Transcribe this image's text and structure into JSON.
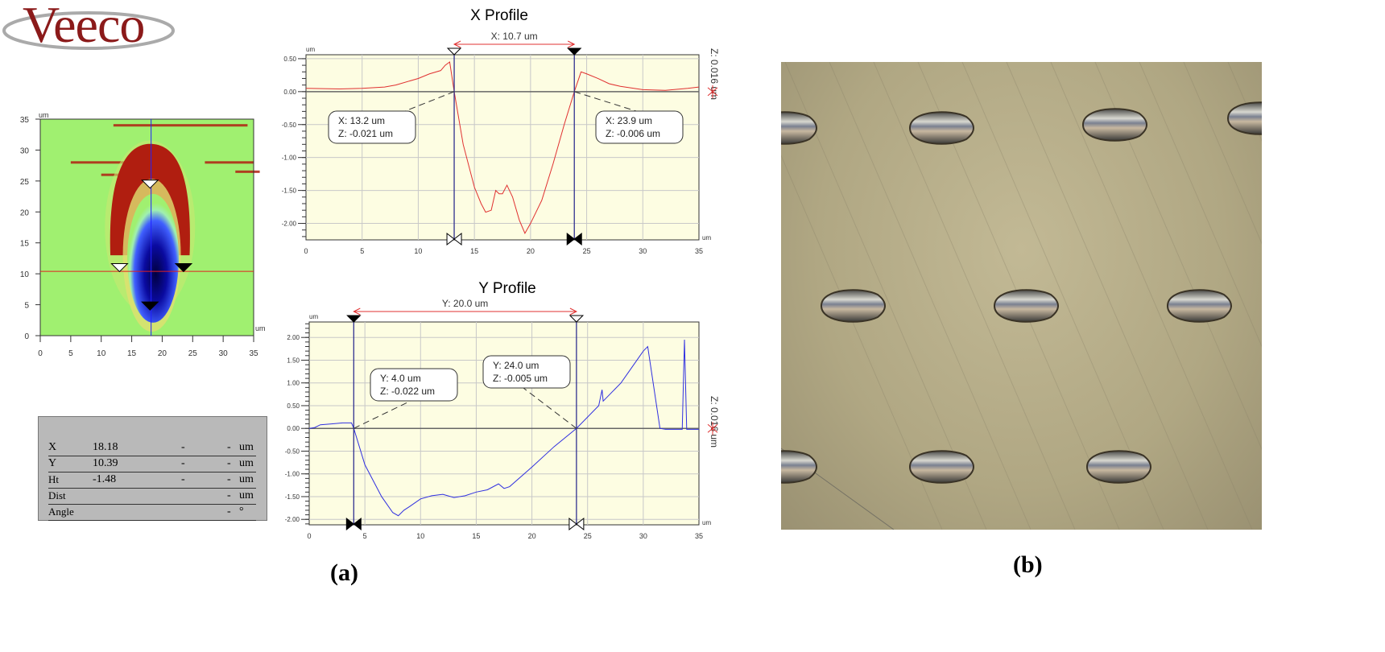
{
  "logo": {
    "text": "Veeco"
  },
  "figure_labels": {
    "a": "(a)",
    "b": "(b)"
  },
  "heatmap": {
    "y_unit": "um",
    "x_unit": "um",
    "x_ticks": [
      "0",
      "5",
      "10",
      "15",
      "20",
      "25",
      "30",
      "35"
    ],
    "y_ticks": [
      "0",
      "5",
      "10",
      "15",
      "20",
      "25",
      "30",
      "35"
    ],
    "cursor_x": 18.18,
    "cursor_y": 10.39,
    "colors": {
      "background": "#a0f070",
      "rim": "#b01e10",
      "pit": "#10108c"
    }
  },
  "readout_table": {
    "rows": [
      {
        "label": "X",
        "value": "18.18",
        "c1": "-",
        "c2": "-",
        "unit": "um"
      },
      {
        "label": "Y",
        "value": "10.39",
        "c1": "-",
        "c2": "-",
        "unit": "um"
      },
      {
        "label": "Ht",
        "value": "-1.48",
        "c1": "-",
        "c2": "-",
        "unit": "um"
      },
      {
        "label": "Dist",
        "value": "",
        "c1": "",
        "c2": "-",
        "unit": "um"
      },
      {
        "label": "Angle",
        "value": "",
        "c1": "",
        "c2": "-",
        "unit": "°"
      }
    ]
  },
  "chart_data": [
    {
      "type": "line",
      "title": "X Profile",
      "ylabel": "um",
      "xlabel": "um",
      "xlim": [
        0,
        35
      ],
      "ylim": [
        -2.25,
        0.56
      ],
      "x_ticks": [
        "0",
        "5",
        "10",
        "15",
        "20",
        "25",
        "30",
        "35"
      ],
      "y_ticks": [
        "0.50",
        "0.00",
        "-0.50",
        "-1.00",
        "-1.50",
        "-2.00"
      ],
      "grid": true,
      "color": "#e03030",
      "measure_label": "X: 10.7 um",
      "z_scale_label": "Z: 0.016 um",
      "cursors": [
        {
          "x": 13.2,
          "z": -0.021,
          "line1": "X: 13.2 um",
          "line2": "Z: -0.021 um",
          "marker": "open"
        },
        {
          "x": 23.9,
          "z": -0.006,
          "line1": "X: 23.9 um",
          "line2": "Z: -0.006 um",
          "marker": "filled"
        }
      ],
      "points": [
        [
          0,
          0.05
        ],
        [
          3,
          0.04
        ],
        [
          5,
          0.05
        ],
        [
          7,
          0.07
        ],
        [
          8,
          0.1
        ],
        [
          10,
          0.2
        ],
        [
          11,
          0.27
        ],
        [
          12,
          0.32
        ],
        [
          12.4,
          0.4
        ],
        [
          12.8,
          0.45
        ],
        [
          13.2,
          0
        ],
        [
          14,
          -0.8
        ],
        [
          15,
          -1.45
        ],
        [
          15.6,
          -1.7
        ],
        [
          16,
          -1.83
        ],
        [
          16.5,
          -1.8
        ],
        [
          16.9,
          -1.5
        ],
        [
          17.2,
          -1.55
        ],
        [
          17.5,
          -1.55
        ],
        [
          17.9,
          -1.42
        ],
        [
          18.4,
          -1.6
        ],
        [
          19,
          -1.95
        ],
        [
          19.5,
          -2.15
        ],
        [
          20,
          -2.0
        ],
        [
          21,
          -1.65
        ],
        [
          22,
          -1.1
        ],
        [
          23,
          -0.5
        ],
        [
          23.9,
          0
        ],
        [
          24.5,
          0.3
        ],
        [
          25,
          0.27
        ],
        [
          26,
          0.2
        ],
        [
          27,
          0.12
        ],
        [
          28,
          0.08
        ],
        [
          30,
          0.03
        ],
        [
          32,
          0.02
        ],
        [
          34,
          0.05
        ],
        [
          35,
          0.07
        ]
      ]
    },
    {
      "type": "line",
      "title": "Y Profile",
      "ylabel": "um",
      "xlabel": "um",
      "xlim": [
        0,
        35
      ],
      "ylim": [
        -2.12,
        2.34
      ],
      "x_ticks": [
        "0",
        "5",
        "10",
        "15",
        "20",
        "25",
        "30",
        "35"
      ],
      "y_ticks": [
        "2.00",
        "1.50",
        "1.00",
        "0.50",
        "0.00",
        "-0.50",
        "-1.00",
        "-1.50",
        "-2.00"
      ],
      "grid": true,
      "color": "#3030e0",
      "measure_label": "Y: 20.0 um",
      "z_scale_label": "Z: 0.016 um",
      "cursors": [
        {
          "x": 4.0,
          "z": -0.022,
          "line1": "Y: 4.0 um",
          "line2": "Z: -0.022 um",
          "marker": "filled"
        },
        {
          "x": 24.0,
          "z": -0.005,
          "line1": "Y: 24.0 um",
          "line2": "Z: -0.005 um",
          "marker": "open"
        }
      ],
      "points": [
        [
          0,
          0
        ],
        [
          0.5,
          0.02
        ],
        [
          1,
          0.08
        ],
        [
          2,
          0.1
        ],
        [
          3,
          0.12
        ],
        [
          3.8,
          0.12
        ],
        [
          4,
          0
        ],
        [
          5,
          -0.8
        ],
        [
          6.5,
          -1.5
        ],
        [
          7.5,
          -1.85
        ],
        [
          8,
          -1.92
        ],
        [
          8.5,
          -1.8
        ],
        [
          9,
          -1.72
        ],
        [
          10,
          -1.55
        ],
        [
          11,
          -1.48
        ],
        [
          12,
          -1.45
        ],
        [
          13,
          -1.52
        ],
        [
          14,
          -1.48
        ],
        [
          15,
          -1.4
        ],
        [
          16,
          -1.35
        ],
        [
          17,
          -1.22
        ],
        [
          17.5,
          -1.32
        ],
        [
          18,
          -1.28
        ],
        [
          20,
          -0.85
        ],
        [
          22,
          -0.4
        ],
        [
          24,
          0
        ],
        [
          26,
          0.5
        ],
        [
          26.3,
          0.85
        ],
        [
          26.4,
          0.6
        ],
        [
          28,
          1.0
        ],
        [
          29,
          1.35
        ],
        [
          30,
          1.7
        ],
        [
          30.4,
          1.8
        ],
        [
          31.5,
          0
        ],
        [
          32,
          -0.02
        ],
        [
          33.5,
          -0.02
        ],
        [
          33.7,
          1.95
        ],
        [
          33.9,
          -0.02
        ],
        [
          35,
          -0.02
        ]
      ]
    }
  ]
}
